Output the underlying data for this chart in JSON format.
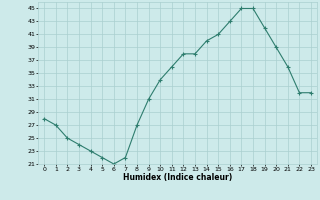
{
  "x": [
    0,
    1,
    2,
    3,
    4,
    5,
    6,
    7,
    8,
    9,
    10,
    11,
    12,
    13,
    14,
    15,
    16,
    17,
    18,
    19,
    20,
    21,
    22,
    23
  ],
  "y": [
    28,
    27,
    25,
    24,
    23,
    22,
    21,
    22,
    27,
    31,
    34,
    36,
    38,
    38,
    40,
    41,
    43,
    45,
    45,
    42,
    39,
    36,
    32,
    32
  ],
  "line_color": "#2e7d6e",
  "marker": "+",
  "bg_color": "#cdeaea",
  "grid_color": "#aacfcf",
  "xlabel": "Humidex (Indice chaleur)",
  "xlim": [
    -0.5,
    23.5
  ],
  "ylim": [
    21,
    46
  ],
  "yticks": [
    21,
    23,
    25,
    27,
    29,
    31,
    33,
    35,
    37,
    39,
    41,
    43,
    45
  ],
  "xticks": [
    0,
    1,
    2,
    3,
    4,
    5,
    6,
    7,
    8,
    9,
    10,
    11,
    12,
    13,
    14,
    15,
    16,
    17,
    18,
    19,
    20,
    21,
    22,
    23
  ]
}
